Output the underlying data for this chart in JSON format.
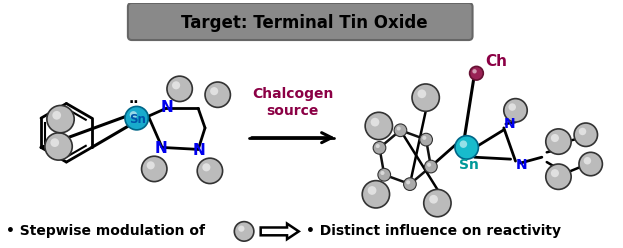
{
  "title_box": "Target: Terminal Tin Oxide",
  "title_box_bg": "#888888",
  "title_box_text_color": "#000000",
  "chalcogen_label": "Chalcogen\nsource",
  "chalcogen_color": "#8B0045",
  "ch_label": "Ch",
  "ch_color": "#8B0045",
  "sn_label_left": "Sn",
  "sn_label_right": "Sn",
  "sn_color_left": "#1AACCC",
  "sn_color_right": "#1AACCC",
  "n_color": "#0000EE",
  "bottom_text_left": "• Stepwise modulation of ",
  "bottom_text_right": "• Distinct influence on reactivity",
  "bg_color": "#FFFFFF",
  "figsize": [
    6.23,
    2.48
  ],
  "dpi": 100
}
